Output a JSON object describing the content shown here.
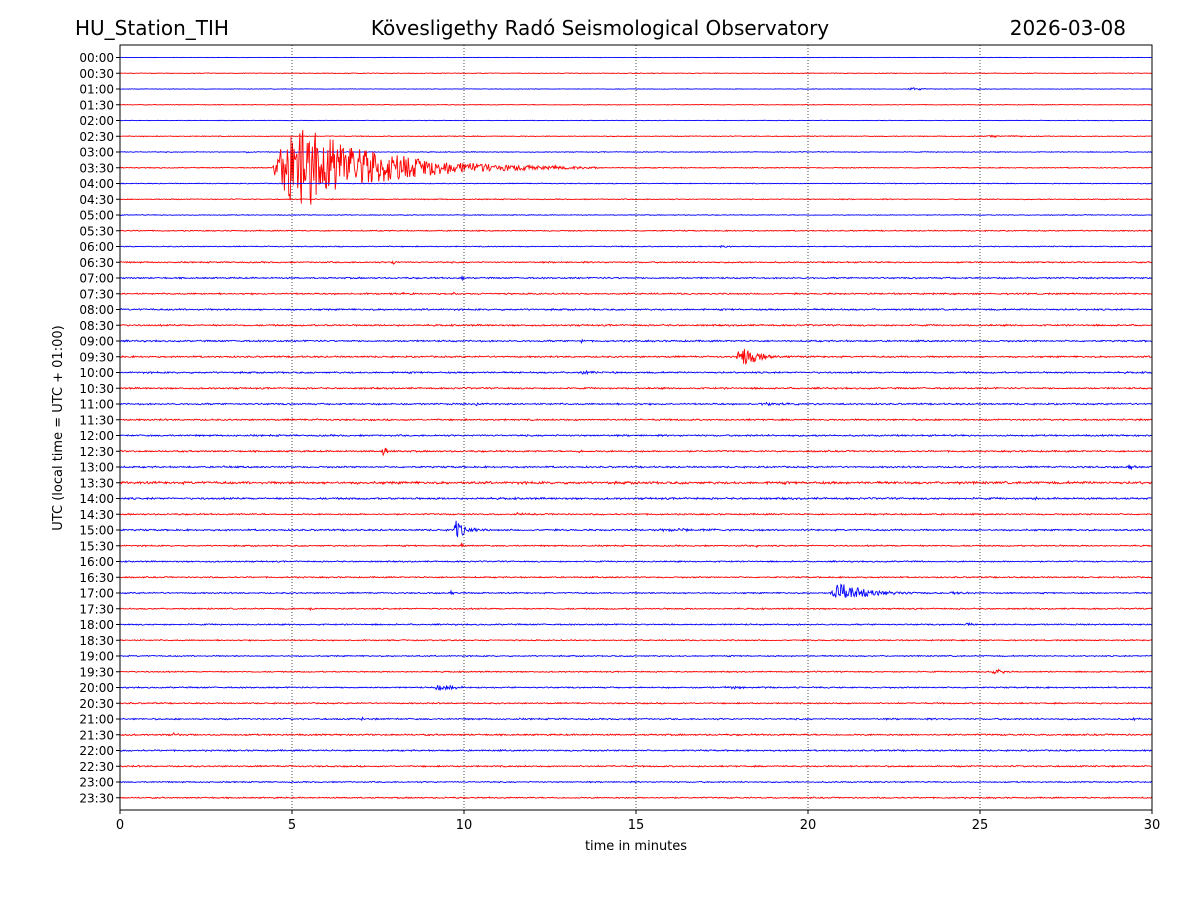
{
  "header": {
    "station": "HU_Station_TIH",
    "observatory": "Kövesligethy Radó Seismological Observatory",
    "date": "2026-03-08"
  },
  "chart_data": {
    "type": "line",
    "title": "Kövesligethy Radó Seismological Observatory",
    "xlabel": "time in minutes",
    "ylabel": "UTC (local time = UTC + 01:00)",
    "xlim": [
      0,
      30
    ],
    "xticks": [
      0,
      5,
      10,
      15,
      20,
      25,
      30
    ],
    "grid_x": true,
    "grid_style": "dotted",
    "rows": [
      "00:00",
      "00:30",
      "01:00",
      "01:30",
      "02:00",
      "02:30",
      "03:00",
      "03:30",
      "04:00",
      "04:30",
      "05:00",
      "05:30",
      "06:00",
      "06:30",
      "07:00",
      "07:30",
      "08:00",
      "08:30",
      "09:00",
      "09:30",
      "10:00",
      "10:30",
      "11:00",
      "11:30",
      "12:00",
      "12:30",
      "13:00",
      "13:30",
      "14:00",
      "14:30",
      "15:00",
      "15:30",
      "16:00",
      "16:30",
      "17:00",
      "17:30",
      "18:00",
      "18:30",
      "19:00",
      "19:30",
      "20:00",
      "20:30",
      "21:00",
      "21:30",
      "22:00",
      "22:30",
      "23:00",
      "23:30"
    ],
    "trace_colors": [
      "#0000ff",
      "#ff0000"
    ],
    "noise_level": [
      0.15,
      0.25,
      0.2,
      0.25,
      0.2,
      0.3,
      0.3,
      0.35,
      0.3,
      0.35,
      0.3,
      0.4,
      0.35,
      0.5,
      0.55,
      0.55,
      0.6,
      0.6,
      0.6,
      0.6,
      0.6,
      0.6,
      0.6,
      0.6,
      0.6,
      0.6,
      0.6,
      0.9,
      0.7,
      0.55,
      0.6,
      0.5,
      0.5,
      0.5,
      0.5,
      0.5,
      0.5,
      0.45,
      0.45,
      0.45,
      0.5,
      0.5,
      0.55,
      0.6,
      0.55,
      0.55,
      0.45,
      0.5
    ],
    "events": [
      {
        "row": "01:00",
        "start": 22.9,
        "duration": 1.2,
        "amplitude": 2.5
      },
      {
        "row": "01:00",
        "start": 24.9,
        "duration": 0.6,
        "amplitude": 1.2
      },
      {
        "row": "02:30",
        "start": 25.0,
        "duration": 3.0,
        "amplitude": 1.3
      },
      {
        "row": "03:00",
        "start": 3.6,
        "duration": 0.6,
        "amplitude": 2.0
      },
      {
        "row": "03:30",
        "start": 4.4,
        "duration": 9.5,
        "amplitude": 62
      },
      {
        "row": "06:00",
        "start": 17.4,
        "duration": 1.2,
        "amplitude": 1.5
      },
      {
        "row": "06:30",
        "start": 7.9,
        "duration": 0.3,
        "amplitude": 5
      },
      {
        "row": "07:00",
        "start": 9.9,
        "duration": 0.4,
        "amplitude": 3
      },
      {
        "row": "07:30",
        "start": 8.1,
        "duration": 0.4,
        "amplitude": 2.5
      },
      {
        "row": "07:30",
        "start": 9.7,
        "duration": 0.2,
        "amplitude": 4
      },
      {
        "row": "09:00",
        "start": 13.4,
        "duration": 0.2,
        "amplitude": 5
      },
      {
        "row": "09:30",
        "start": 17.9,
        "duration": 2.0,
        "amplitude": 14
      },
      {
        "row": "10:00",
        "start": 13.3,
        "duration": 1.8,
        "amplitude": 2.2
      },
      {
        "row": "11:00",
        "start": 10.3,
        "duration": 0.5,
        "amplitude": 4
      },
      {
        "row": "11:00",
        "start": 18.5,
        "duration": 2.5,
        "amplitude": 1.6
      },
      {
        "row": "12:30",
        "start": 7.6,
        "duration": 0.5,
        "amplitude": 9
      },
      {
        "row": "12:30",
        "start": 13.3,
        "duration": 0.2,
        "amplitude": 3
      },
      {
        "row": "13:00",
        "start": 3.0,
        "duration": 0.2,
        "amplitude": 3
      },
      {
        "row": "13:00",
        "start": 29.3,
        "duration": 0.7,
        "amplitude": 4
      },
      {
        "row": "14:00",
        "start": 26.6,
        "duration": 0.2,
        "amplitude": 3
      },
      {
        "row": "14:30",
        "start": 11.5,
        "duration": 0.5,
        "amplitude": 3
      },
      {
        "row": "15:00",
        "start": 9.7,
        "duration": 1.0,
        "amplitude": 14
      },
      {
        "row": "15:00",
        "start": 15.5,
        "duration": 4.5,
        "amplitude": 2.2
      },
      {
        "row": "15:30",
        "start": 9.9,
        "duration": 0.3,
        "amplitude": 5
      },
      {
        "row": "15:30",
        "start": 18.5,
        "duration": 0.2,
        "amplitude": 3
      },
      {
        "row": "16:00",
        "start": 23.3,
        "duration": 0.2,
        "amplitude": 4
      },
      {
        "row": "17:00",
        "start": 9.6,
        "duration": 0.3,
        "amplitude": 3
      },
      {
        "row": "17:00",
        "start": 20.6,
        "duration": 3.5,
        "amplitude": 14
      },
      {
        "row": "17:00",
        "start": 24.0,
        "duration": 2.5,
        "amplitude": 1.5
      },
      {
        "row": "17:30",
        "start": 5.5,
        "duration": 0.6,
        "amplitude": 2.2
      },
      {
        "row": "18:00",
        "start": 16.0,
        "duration": 0.2,
        "amplitude": 3
      },
      {
        "row": "18:00",
        "start": 24.5,
        "duration": 1.5,
        "amplitude": 1.6
      },
      {
        "row": "19:30",
        "start": 25.3,
        "duration": 1.5,
        "amplitude": 3.5
      },
      {
        "row": "20:00",
        "start": 9.1,
        "duration": 2.0,
        "amplitude": 4
      },
      {
        "row": "20:00",
        "start": 17.5,
        "duration": 4.0,
        "amplitude": 1.8
      },
      {
        "row": "21:00",
        "start": 7.0,
        "duration": 0.2,
        "amplitude": 3
      },
      {
        "row": "21:00",
        "start": 29.4,
        "duration": 0.6,
        "amplitude": 2.5
      },
      {
        "row": "21:30",
        "start": 1.5,
        "duration": 0.7,
        "amplitude": 2.5
      }
    ]
  }
}
